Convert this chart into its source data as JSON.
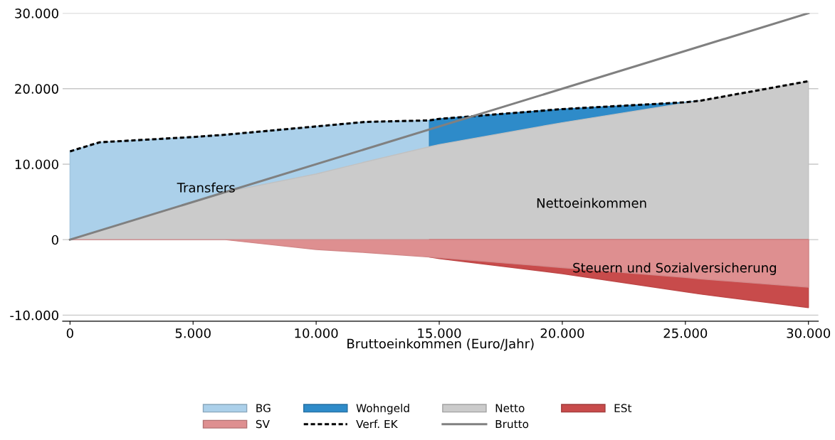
{
  "chart_data": {
    "type": "area",
    "xlabel": "Bruttoeinkommen (Euro/Jahr)",
    "x": [
      0,
      1200,
      5000,
      6300,
      10000,
      12000,
      14600,
      15000,
      20000,
      25000,
      25600,
      30000
    ],
    "series": [
      {
        "name": "BG",
        "color": "#abd0ea",
        "values": [
          11700,
          12900,
          13600,
          13900,
          15000,
          15600,
          15800,
          null,
          null,
          null,
          null,
          null
        ]
      },
      {
        "name": "Wohngeld",
        "color": "#2e8bc9",
        "values": [
          null,
          null,
          null,
          null,
          null,
          null,
          15800,
          16000,
          17300,
          18200,
          18400,
          null
        ]
      },
      {
        "name": "Netto",
        "color": "#cbcbcb",
        "values": [
          0,
          1200,
          5000,
          6300,
          8700,
          10300,
          12300,
          12600,
          15500,
          18100,
          18400,
          21000
        ]
      },
      {
        "name": "ESt",
        "color": "#c84b4b",
        "values": [
          null,
          null,
          null,
          null,
          null,
          null,
          -2300,
          -2500,
          -4500,
          -6900,
          -7200,
          -9000
        ]
      },
      {
        "name": "SV",
        "color": "#de8f90",
        "values": [
          0,
          0,
          0,
          0,
          -1300,
          -1700,
          -2300,
          -2400,
          -3700,
          -5000,
          -5200,
          -6300
        ]
      },
      {
        "name": "Verf. EK",
        "type": "line",
        "line_style": "dotted",
        "color": "#000000",
        "values": [
          11700,
          12900,
          13600,
          13900,
          15000,
          15600,
          15800,
          16000,
          17300,
          18200,
          18400,
          21000
        ]
      },
      {
        "name": "Brutto",
        "type": "line",
        "line_style": "solid",
        "color": "#808080",
        "x": [
          0,
          30000
        ],
        "values": [
          0,
          30000
        ]
      }
    ],
    "annotations": [
      "Transfers",
      "Nettoeinkommen",
      "Steuern und Sozialversicherung"
    ],
    "xlim": [
      -300,
      30400
    ],
    "ylim": [
      -10800,
      30000
    ],
    "xticks": [
      {
        "value": 0,
        "label": "0"
      },
      {
        "value": 5000,
        "label": "5.000"
      },
      {
        "value": 10000,
        "label": "10.000"
      },
      {
        "value": 15000,
        "label": "15.000"
      },
      {
        "value": 20000,
        "label": "20.000"
      },
      {
        "value": 25000,
        "label": "25.000"
      },
      {
        "value": 30000,
        "label": "30.000"
      }
    ],
    "yticks": [
      {
        "value": -10000,
        "label": "-10.000"
      },
      {
        "value": 0,
        "label": "0"
      },
      {
        "value": 10000,
        "label": "10.000"
      },
      {
        "value": 20000,
        "label": "20.000"
      },
      {
        "value": 30000,
        "label": "30.000"
      }
    ],
    "grid": "y",
    "legend": "bottom"
  }
}
